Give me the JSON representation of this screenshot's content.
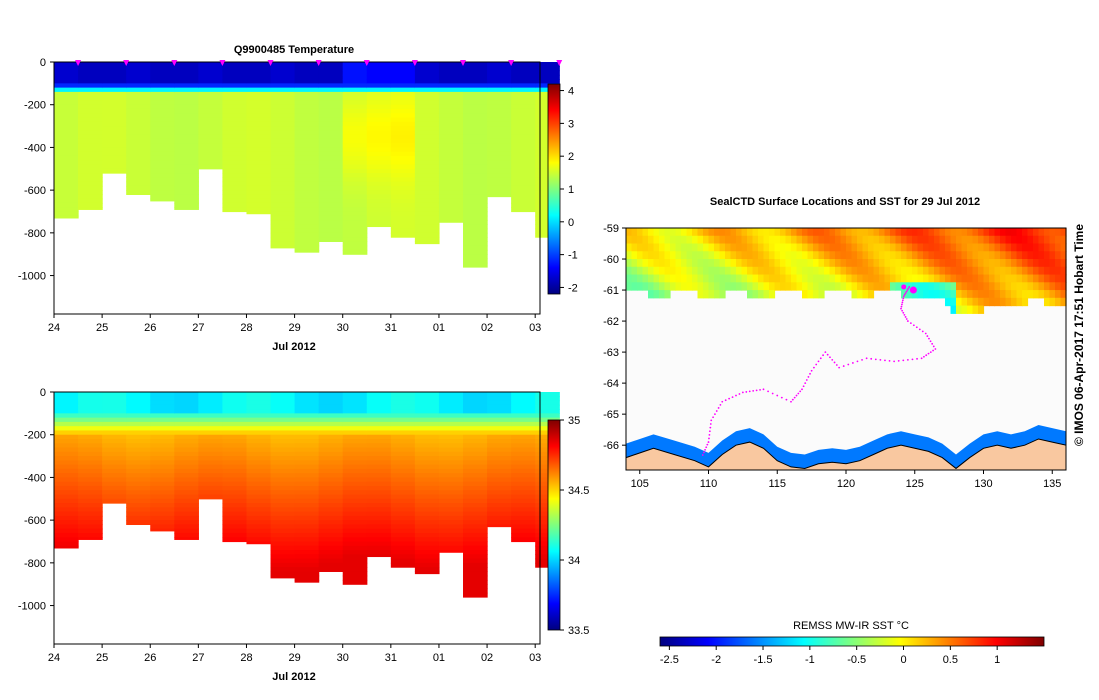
{
  "colors": {
    "ocean_pale": "#fbfbfb",
    "land": "#f9c8a0",
    "track": "#ff00ff"
  },
  "stamp": "© IMOS 06-Apr-2017 17:51 Hobart Time",
  "chart_data": [
    {
      "id": "temperature",
      "type": "heatmap",
      "title": "Q9900485  Temperature",
      "xlabel": "Jul 2012",
      "ylabel": "",
      "x_ticks": [
        "24",
        "25",
        "26",
        "27",
        "28",
        "29",
        "30",
        "31",
        "01",
        "02",
        "03"
      ],
      "y_ticks": [
        "0",
        "-200",
        "-400",
        "-600",
        "-800",
        "-1000"
      ],
      "ylim": [
        -1180,
        0
      ],
      "colorbar": {
        "min": -2.2,
        "max": 4.2,
        "ticks": [
          "-2",
          "-1",
          "0",
          "1",
          "2",
          "3",
          "4"
        ]
      },
      "profile_days": [
        24.0,
        24.5,
        25.0,
        25.5,
        26.0,
        26.5,
        27.0,
        27.5,
        28.0,
        28.5,
        29.0,
        29.5,
        30.0,
        30.5,
        31.0,
        31.5,
        32.0,
        32.5,
        33.0,
        33.5,
        34.0
      ],
      "profile_depths": [
        730,
        690,
        520,
        620,
        650,
        690,
        500,
        700,
        710,
        870,
        890,
        840,
        900,
        770,
        820,
        850,
        750,
        960,
        630,
        700,
        820
      ],
      "surface_layer_depth": 120,
      "surface_value": -1.8,
      "deep_value": 1.6
    },
    {
      "id": "salinity",
      "type": "heatmap",
      "title": "",
      "xlabel": "Jul 2012",
      "ylabel": "",
      "x_ticks": [
        "24",
        "25",
        "26",
        "27",
        "28",
        "29",
        "30",
        "31",
        "01",
        "02",
        "03"
      ],
      "y_ticks": [
        "0",
        "-200",
        "-400",
        "-600",
        "-800",
        "-1000"
      ],
      "ylim": [
        -1180,
        0
      ],
      "colorbar": {
        "min": 33.5,
        "max": 35.0,
        "ticks": [
          "33.5",
          "34",
          "34.5",
          "35"
        ]
      },
      "surface_value": 34.0,
      "deep_value": 34.75
    },
    {
      "id": "sst_map",
      "type": "heatmap",
      "title": "SealCTD Surface Locations and SST for 29 Jul 2012",
      "x_ticks": [
        "105",
        "110",
        "115",
        "120",
        "125",
        "130",
        "135"
      ],
      "y_ticks": [
        "-59",
        "-60",
        "-61",
        "-62",
        "-63",
        "-64",
        "-65",
        "-66"
      ],
      "xlim": [
        104,
        136
      ],
      "ylim": [
        -66.8,
        -59
      ],
      "colorbar_label": "REMSS MW-IR SST °C",
      "colorbar": {
        "min": -2.6,
        "max": 1.5,
        "ticks": [
          "-2.5",
          "-2",
          "-1.5",
          "-1",
          "-0.5",
          "0",
          "0.5",
          "1"
        ]
      }
    }
  ]
}
